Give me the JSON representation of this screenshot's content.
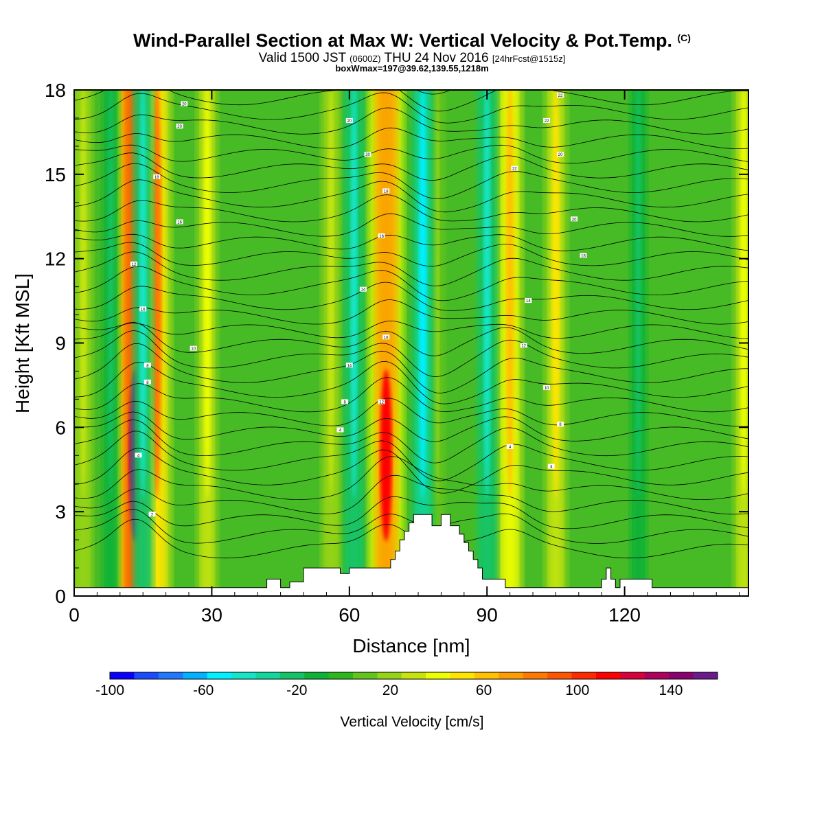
{
  "chart_data": {
    "type": "heatmap",
    "title": "Wind-Parallel Section at Max W: Vertical Velocity & Pot.Temp.",
    "title_mark": "(C)",
    "subtitle": {
      "pre": "Valid 1500 JST",
      "zulu": "(0600Z)",
      "date": "THU 24 Nov 2016",
      "fcst": "[24hrFcst@1515z]"
    },
    "subtitle2": "boxWmax=197@39.62,139.55,1218m",
    "xlabel": "Distance [nm]",
    "ylabel": "Height [Kft MSL]",
    "xlim": [
      0,
      147
    ],
    "ylim": [
      0,
      18
    ],
    "xticks": [
      0,
      30,
      60,
      90,
      120
    ],
    "yticks": [
      0,
      3,
      6,
      9,
      12,
      15,
      18
    ],
    "colorbar": {
      "title": "Vertical Velocity [cm/s]",
      "range": [
        -100,
        160
      ],
      "labels": [
        -100,
        -60,
        -20,
        20,
        60,
        100,
        140
      ],
      "colors": [
        "#0a00ff",
        "#1a4cff",
        "#1f78ff",
        "#00b2ff",
        "#00f0ff",
        "#13e6c8",
        "#10d79b",
        "#12c466",
        "#0eb237",
        "#2cb71b",
        "#63c51b",
        "#95d416",
        "#c7e50c",
        "#eeff00",
        "#ffe400",
        "#ffc100",
        "#ff9c00",
        "#ff7800",
        "#ff5500",
        "#ff2a00",
        "#ff0000",
        "#d9003c",
        "#b0005e",
        "#8a006f",
        "#6b1a8c"
      ]
    },
    "updrafts": [
      {
        "x": 2,
        "w": 30
      },
      {
        "x": 13.5,
        "w": 140
      },
      {
        "x": 18,
        "w": 80
      },
      {
        "x": 29,
        "w": 40
      },
      {
        "x": 56,
        "w": 30
      },
      {
        "x": 68,
        "w": 110
      },
      {
        "x": 79,
        "w": 20
      },
      {
        "x": 95,
        "w": 60
      },
      {
        "x": 105,
        "w": 50
      },
      {
        "x": 146,
        "w": 40
      }
    ],
    "downdrafts": [
      {
        "x": 8,
        "w": -20
      },
      {
        "x": 15,
        "w": -40
      },
      {
        "x": 61,
        "w": -40
      },
      {
        "x": 76,
        "w": -50
      },
      {
        "x": 90,
        "w": -40
      },
      {
        "x": 123,
        "w": -20
      }
    ],
    "terrain_kft": [
      [
        0,
        0.3
      ],
      [
        42,
        0.3
      ],
      [
        42,
        0.6
      ],
      [
        45,
        0.6
      ],
      [
        45,
        0.3
      ],
      [
        47,
        0.3
      ],
      [
        47,
        0.5
      ],
      [
        50,
        0.5
      ],
      [
        50,
        1.0
      ],
      [
        58,
        1.0
      ],
      [
        58,
        0.8
      ],
      [
        60,
        0.8
      ],
      [
        60,
        1.0
      ],
      [
        69,
        1.0
      ],
      [
        69,
        1.3
      ],
      [
        70,
        1.3
      ],
      [
        70,
        1.6
      ],
      [
        71,
        1.6
      ],
      [
        71,
        2.0
      ],
      [
        72,
        2.0
      ],
      [
        72,
        2.3
      ],
      [
        73,
        2.3
      ],
      [
        73,
        2.6
      ],
      [
        74,
        2.6
      ],
      [
        74,
        2.9
      ],
      [
        78,
        2.9
      ],
      [
        78,
        2.5
      ],
      [
        80,
        2.5
      ],
      [
        80,
        2.9
      ],
      [
        82,
        2.9
      ],
      [
        82,
        2.5
      ],
      [
        84,
        2.5
      ],
      [
        84,
        2.2
      ],
      [
        85,
        2.2
      ],
      [
        85,
        1.9
      ],
      [
        86,
        1.9
      ],
      [
        86,
        1.6
      ],
      [
        87,
        1.6
      ],
      [
        87,
        1.3
      ],
      [
        88,
        1.3
      ],
      [
        88,
        1.0
      ],
      [
        89,
        1.0
      ],
      [
        89,
        0.6
      ],
      [
        94,
        0.6
      ],
      [
        94,
        0.3
      ],
      [
        115,
        0.3
      ],
      [
        115,
        0.6
      ],
      [
        116,
        0.6
      ],
      [
        116,
        1.0
      ],
      [
        117,
        1.0
      ],
      [
        117,
        0.6
      ],
      [
        118,
        0.6
      ],
      [
        118,
        0.3
      ],
      [
        119,
        0.3
      ],
      [
        119,
        0.6
      ],
      [
        126,
        0.6
      ],
      [
        126,
        0.3
      ],
      [
        147,
        0.3
      ],
      [
        147,
        0
      ]
    ],
    "theta_labels": [
      {
        "x": 14,
        "y": 5.0,
        "text": "4"
      },
      {
        "x": 17,
        "y": 2.9,
        "text": "2"
      },
      {
        "x": 16,
        "y": 7.6,
        "text": "8"
      },
      {
        "x": 16,
        "y": 8.2,
        "text": "8"
      },
      {
        "x": 26,
        "y": 8.8,
        "text": "10"
      },
      {
        "x": 15,
        "y": 10.2,
        "text": "16"
      },
      {
        "x": 13,
        "y": 11.8,
        "text": "12"
      },
      {
        "x": 23,
        "y": 13.3,
        "text": "16"
      },
      {
        "x": 18,
        "y": 14.9,
        "text": "18"
      },
      {
        "x": 23,
        "y": 16.7,
        "text": "20"
      },
      {
        "x": 24,
        "y": 17.5,
        "text": "20"
      },
      {
        "x": 58,
        "y": 5.9,
        "text": "4"
      },
      {
        "x": 59,
        "y": 6.9,
        "text": "8"
      },
      {
        "x": 60,
        "y": 8.2,
        "text": "14"
      },
      {
        "x": 67,
        "y": 6.9,
        "text": "12"
      },
      {
        "x": 68,
        "y": 9.2,
        "text": "16"
      },
      {
        "x": 63,
        "y": 10.9,
        "text": "14"
      },
      {
        "x": 67,
        "y": 12.8,
        "text": "16"
      },
      {
        "x": 68,
        "y": 14.4,
        "text": "18"
      },
      {
        "x": 64,
        "y": 15.7,
        "text": "20"
      },
      {
        "x": 60,
        "y": 16.9,
        "text": "20"
      },
      {
        "x": 95,
        "y": 5.3,
        "text": "4"
      },
      {
        "x": 98,
        "y": 8.9,
        "text": "12"
      },
      {
        "x": 99,
        "y": 10.5,
        "text": "14"
      },
      {
        "x": 104,
        "y": 4.6,
        "text": "4"
      },
      {
        "x": 106,
        "y": 6.1,
        "text": "8"
      },
      {
        "x": 103,
        "y": 7.4,
        "text": "10"
      },
      {
        "x": 111,
        "y": 12.1,
        "text": "18"
      },
      {
        "x": 109,
        "y": 13.4,
        "text": "20"
      },
      {
        "x": 96,
        "y": 15.2,
        "text": "22"
      },
      {
        "x": 106,
        "y": 15.7,
        "text": "20"
      },
      {
        "x": 103,
        "y": 16.9,
        "text": "22"
      },
      {
        "x": 106,
        "y": 17.8,
        "text": "22"
      }
    ]
  }
}
